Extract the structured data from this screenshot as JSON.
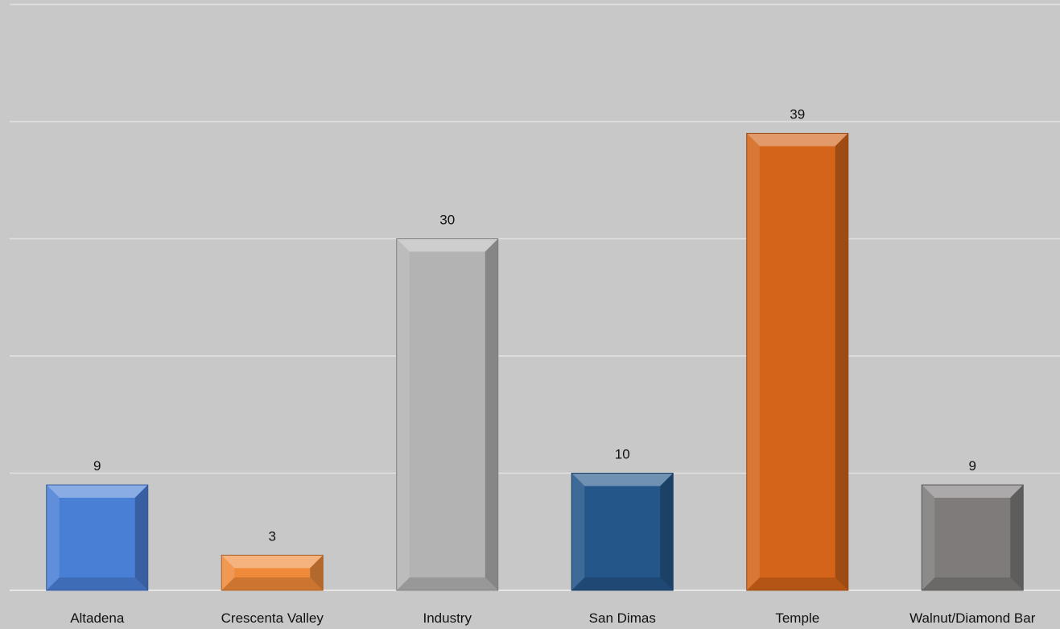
{
  "chart_data": {
    "type": "bar",
    "categories": [
      "Altadena",
      "Crescenta Valley",
      "Industry",
      "San Dimas",
      "Temple",
      "Walnut/Diamond Bar"
    ],
    "values": [
      9,
      3,
      30,
      10,
      39,
      9
    ],
    "data_labels": [
      "9",
      "3",
      "30",
      "10",
      "39",
      "9"
    ],
    "colors": [
      "#4a7fd6",
      "#ef8a3a",
      "#b3b3b3",
      "#245689",
      "#d4641a",
      "#7e7b7a"
    ],
    "ylim": [
      0,
      50
    ],
    "yticks": [
      0,
      10,
      20,
      30,
      40,
      50
    ],
    "grid": true,
    "legend": "none"
  }
}
